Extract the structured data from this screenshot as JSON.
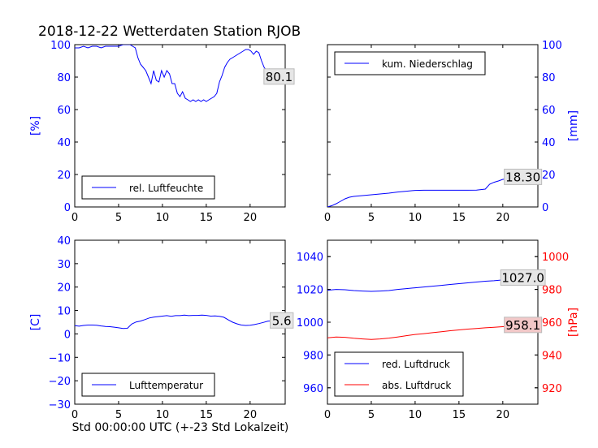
{
  "figure": {
    "suptitle": "2018-12-22 Wetterdaten Station RJOB",
    "xlabel": "Std 00:00:00 UTC (+-23 Std Lokalzeit)"
  },
  "colors": {
    "blue": "#0000ff",
    "red": "#ff0000",
    "black": "#000000",
    "box_red": "#f2c8c8",
    "box_grey": "#e6e6e6"
  },
  "chart_data": [
    {
      "id": "humidity",
      "type": "line",
      "ylabel": "[%]",
      "ylabel_side": "left",
      "xlim": [
        0,
        24
      ],
      "ylim": [
        0,
        100
      ],
      "xticks": [
        "0",
        "5",
        "10",
        "15",
        "20"
      ],
      "yticks": [
        "0",
        "20",
        "40",
        "60",
        "80",
        "100"
      ],
      "legend": "bottom-left",
      "series": [
        {
          "name": "rel. Luftfeuchte",
          "color": "#0000ff",
          "x": [
            0,
            0.5,
            1,
            1.5,
            2,
            2.5,
            3,
            3.5,
            4,
            4.5,
            5,
            5.5,
            6,
            6.3,
            6.6,
            6.9,
            7.2,
            7.5,
            7.8,
            8.1,
            8.4,
            8.7,
            9,
            9.3,
            9.6,
            9.9,
            10.2,
            10.5,
            10.8,
            11.1,
            11.4,
            11.7,
            12,
            12.3,
            12.6,
            12.9,
            13.2,
            13.5,
            13.8,
            14.1,
            14.4,
            14.7,
            15,
            15.3,
            15.6,
            15.9,
            16.2,
            16.5,
            16.8,
            17.1,
            17.4,
            17.7,
            18,
            18.3,
            18.6,
            18.9,
            19.2,
            19.5,
            19.8,
            20.1,
            20.4,
            20.7,
            21,
            21.3,
            21.6,
            21.9,
            22.2,
            22.5,
            22.8,
            23.1,
            23.4,
            23.7,
            24
          ],
          "y": [
            98,
            98,
            99,
            98,
            99,
            99,
            98,
            99,
            99,
            99,
            99,
            100,
            100,
            100,
            99,
            98,
            92,
            88,
            86,
            84,
            80,
            76,
            84,
            78,
            77,
            84,
            80,
            84,
            82,
            76,
            76,
            70,
            68,
            71,
            67,
            66,
            65,
            66,
            65,
            66,
            65,
            66,
            65,
            66,
            67,
            68,
            70,
            77,
            81,
            86,
            89,
            91,
            92,
            93,
            94,
            95,
            96,
            97,
            97,
            96,
            94,
            96,
            95,
            90,
            86,
            84,
            85,
            82,
            81,
            80,
            81,
            80,
            80
          ]
        }
      ],
      "annotation": {
        "text": "80.1",
        "x": 23.3,
        "y": 80.1,
        "style": "grey"
      }
    },
    {
      "id": "precip",
      "type": "line",
      "ylabel": "[mm]",
      "ylabel_side": "right",
      "xlim": [
        0,
        24
      ],
      "ylim": [
        0,
        100
      ],
      "xticks": [
        "0",
        "5",
        "10",
        "15",
        "20"
      ],
      "yticks": [
        "0",
        "20",
        "40",
        "60",
        "80",
        "100"
      ],
      "legend": "top-left",
      "series": [
        {
          "name": "kum. Niederschlag",
          "color": "#0000ff",
          "x": [
            0,
            0.5,
            1,
            1.5,
            2,
            2.5,
            3,
            4,
            5,
            6,
            7,
            8,
            9,
            10,
            11,
            12,
            13,
            14,
            15,
            16,
            17,
            18,
            18.5,
            19,
            19.5,
            20,
            21,
            22,
            23,
            24
          ],
          "y": [
            0,
            0.8,
            2,
            3.5,
            5,
            6,
            6.5,
            7,
            7.5,
            8,
            8.5,
            9.2,
            9.7,
            10.2,
            10.3,
            10.3,
            10.3,
            10.3,
            10.3,
            10.3,
            10.4,
            11,
            14,
            15.2,
            16,
            17,
            17.8,
            18.1,
            18.3,
            18.3
          ]
        }
      ],
      "annotation": {
        "text": "18.30",
        "x": 22.3,
        "y": 18.3,
        "style": "grey"
      }
    },
    {
      "id": "temperature",
      "type": "line",
      "ylabel": "[C]",
      "ylabel_side": "left",
      "xlim": [
        0,
        24
      ],
      "ylim": [
        -30,
        40
      ],
      "xticks": [
        "0",
        "5",
        "10",
        "15",
        "20"
      ],
      "yticks": [
        "−30",
        "−20",
        "−10",
        "0",
        "10",
        "20",
        "30",
        "40"
      ],
      "yticks_values": [
        -30,
        -20,
        -10,
        0,
        10,
        20,
        30,
        40
      ],
      "legend": "bottom-left",
      "series": [
        {
          "name": "Lufttemperatur",
          "color": "#0000ff",
          "x": [
            0,
            0.5,
            1,
            1.5,
            2,
            2.5,
            3,
            3.5,
            4,
            4.5,
            5,
            5.5,
            6,
            6.5,
            7,
            7.5,
            8,
            8.5,
            9,
            9.5,
            10,
            10.5,
            11,
            11.5,
            12,
            12.5,
            13,
            13.5,
            14,
            14.5,
            15,
            15.5,
            16,
            16.5,
            17,
            17.5,
            18,
            18.5,
            19,
            19.5,
            20,
            20.5,
            21,
            21.5,
            22,
            22.5,
            23,
            23.5,
            24
          ],
          "y": [
            3.5,
            3.3,
            3.6,
            3.8,
            3.8,
            3.7,
            3.4,
            3.2,
            3.1,
            2.9,
            2.6,
            2.3,
            2.4,
            4.2,
            5.1,
            5.5,
            6.1,
            6.8,
            7.2,
            7.4,
            7.6,
            7.8,
            7.5,
            7.8,
            7.8,
            8.0,
            7.8,
            7.9,
            7.9,
            8.0,
            7.9,
            7.6,
            7.7,
            7.5,
            7.1,
            6.0,
            5.0,
            4.3,
            3.8,
            3.6,
            3.7,
            4.0,
            4.4,
            4.9,
            5.4,
            5.6,
            5.5,
            5.6,
            5.6
          ]
        }
      ],
      "annotation": {
        "text": "5.6",
        "x": 23.6,
        "y": 5.6,
        "style": "grey"
      }
    },
    {
      "id": "pressure",
      "type": "line",
      "ylabel": "[hPa]",
      "ylabel_side": "right",
      "xlim": [
        0,
        24
      ],
      "ylim_left": [
        950,
        1050
      ],
      "ylim_right": [
        910,
        1010
      ],
      "xticks": [
        "0",
        "5",
        "10",
        "15",
        "20"
      ],
      "yticks_left": [
        "960",
        "980",
        "1000",
        "1020",
        "1040"
      ],
      "yticks_left_values": [
        960,
        980,
        1000,
        1020,
        1040
      ],
      "yticks_right": [
        "920",
        "940",
        "960",
        "980",
        "1000"
      ],
      "yticks_right_values": [
        920,
        940,
        960,
        980,
        1000
      ],
      "legend": "bottom-left",
      "series": [
        {
          "name": "red. Luftdruck",
          "color": "#0000ff",
          "axis": "left",
          "x": [
            0,
            1,
            2,
            3,
            4,
            5,
            6,
            7,
            8,
            9,
            10,
            11,
            12,
            13,
            14,
            15,
            16,
            17,
            18,
            19,
            20,
            21,
            22,
            23,
            24
          ],
          "y": [
            1019.5,
            1020,
            1019.8,
            1019.3,
            1019,
            1018.8,
            1019,
            1019.3,
            1020,
            1020.5,
            1021,
            1021.5,
            1022,
            1022.5,
            1023,
            1023.5,
            1024,
            1024.5,
            1025,
            1025.3,
            1025.8,
            1026.3,
            1026.6,
            1026.9,
            1027.0
          ]
        },
        {
          "name": "abs. Luftdruck",
          "color": "#ff0000",
          "axis": "right",
          "x": [
            0,
            1,
            2,
            3,
            4,
            5,
            6,
            7,
            8,
            9,
            10,
            11,
            12,
            13,
            14,
            15,
            16,
            17,
            18,
            19,
            20,
            21,
            22,
            23,
            24
          ],
          "y": [
            950.5,
            951,
            950.8,
            950.2,
            949.8,
            949.5,
            949.8,
            950.3,
            951,
            951.8,
            952.5,
            953,
            953.6,
            954.2,
            954.8,
            955.3,
            955.8,
            956.2,
            956.6,
            956.9,
            957.3,
            957.6,
            957.8,
            958.0,
            958.1
          ]
        }
      ],
      "annotations": [
        {
          "text": "1027.0",
          "x": 22.3,
          "y": 1027.0,
          "axis": "left",
          "style": "grey"
        },
        {
          "text": "958.1",
          "x": 22.3,
          "y": 958.1,
          "axis": "right",
          "style": "red"
        }
      ]
    }
  ]
}
